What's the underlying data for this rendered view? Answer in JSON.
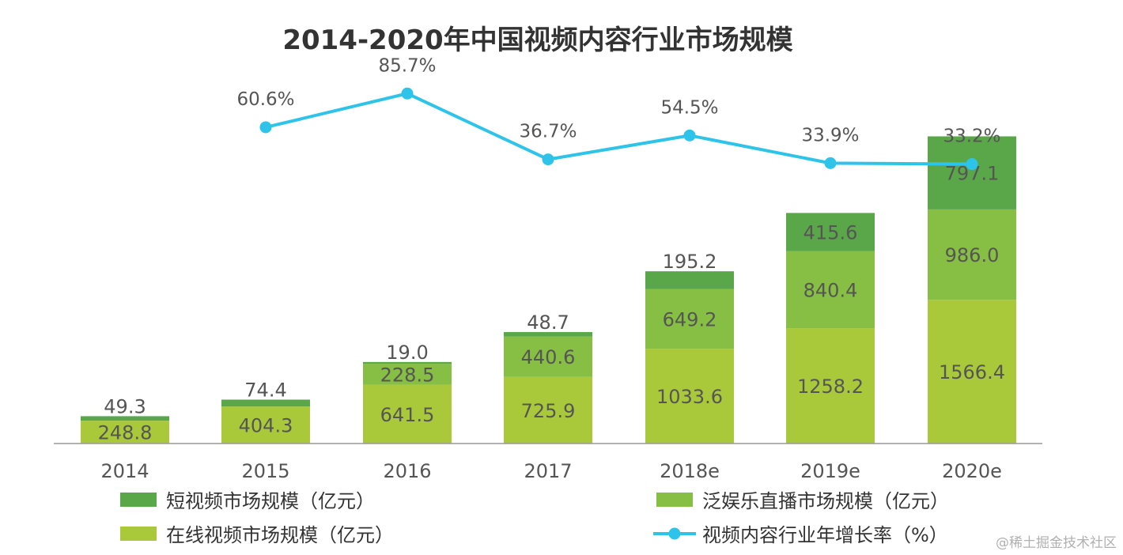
{
  "chart_data": {
    "type": "bar",
    "stacked": true,
    "title": "2014-2020年中国视频内容行业市场规模",
    "categories": [
      "2014",
      "2015",
      "2016",
      "2017",
      "2018e",
      "2019e",
      "2020e"
    ],
    "series": [
      {
        "name": "在线视频市场规模（亿元）",
        "color": "#aac93a",
        "values": [
          248.8,
          404.3,
          641.5,
          725.9,
          1033.6,
          1258.2,
          1566.4
        ]
      },
      {
        "name": "泛娱乐直播市场规模（亿元）",
        "color": "#86bf43",
        "values": [
          null,
          null,
          228.5,
          440.6,
          649.2,
          840.4,
          986.0
        ]
      },
      {
        "name": "短视频市场规模（亿元）",
        "color": "#5aa74a",
        "values": [
          49.3,
          74.4,
          19.0,
          48.7,
          195.2,
          415.6,
          797.1
        ]
      }
    ],
    "line": {
      "name": "视频内容行业年增长率（%）",
      "color": "#2ec4ea",
      "values": [
        null,
        60.6,
        85.7,
        36.7,
        54.5,
        33.9,
        33.2
      ],
      "labels": [
        "",
        "60.6%",
        "85.7%",
        "36.7%",
        "54.5%",
        "33.9%",
        "33.2%"
      ]
    },
    "legend": {
      "position": "bottom",
      "items": [
        {
          "label": "短视频市场规模（亿元）",
          "color": "#5aa74a",
          "kind": "box"
        },
        {
          "label": "泛娱乐直播市场规模（亿元）",
          "color": "#86bf43",
          "kind": "box"
        },
        {
          "label": "在线视频市场规模（亿元）",
          "color": "#aac93a",
          "kind": "box"
        },
        {
          "label": "视频内容行业年增长率（%）",
          "color": "#2ec4ea",
          "kind": "line"
        }
      ]
    },
    "ylim": [
      0,
      3500
    ],
    "growth_ylim": [
      0,
      100
    ],
    "grid": false
  },
  "watermark": "@稀土掘金技术社区"
}
